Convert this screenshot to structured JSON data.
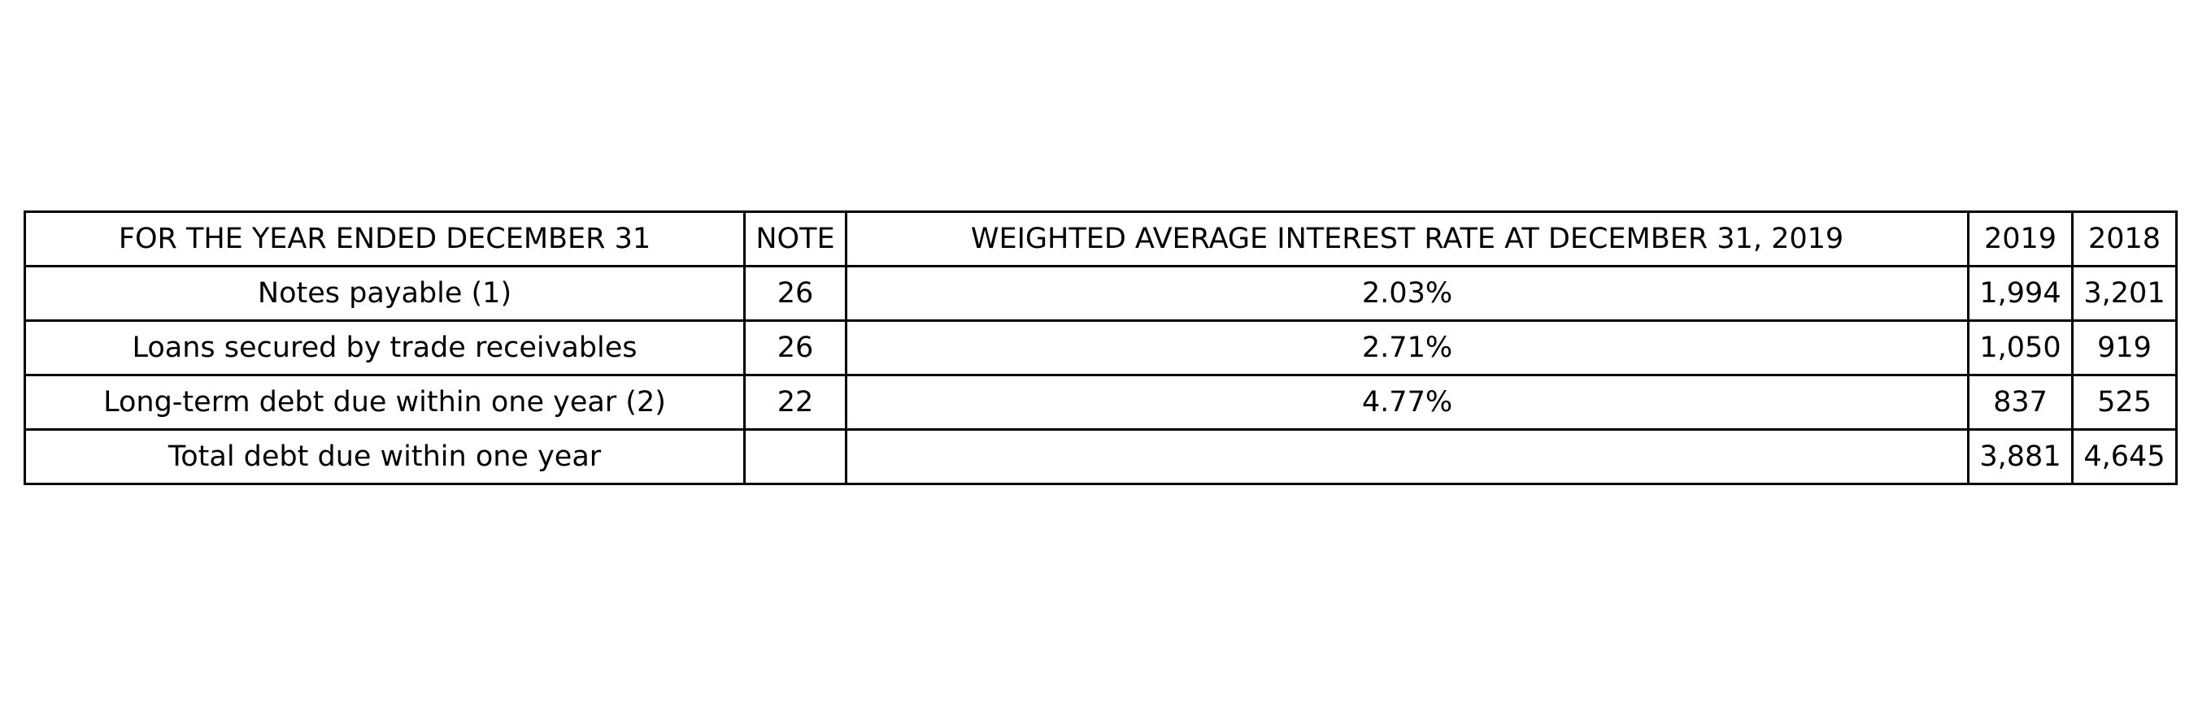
{
  "table": {
    "headers": [
      "FOR THE YEAR ENDED DECEMBER 31",
      "NOTE",
      "WEIGHTED AVERAGE INTEREST RATE AT DECEMBER 31, 2019",
      "2019",
      "2018"
    ],
    "rows": [
      [
        "Notes payable (1)",
        "26",
        "2.03%",
        "1,994",
        "3,201"
      ],
      [
        "Loans secured by trade receivables",
        "26",
        "2.71%",
        "1,050",
        "919"
      ],
      [
        "Long-term debt due within one year (2)",
        "22",
        "4.77%",
        "837",
        "525"
      ],
      [
        "Total debt due within one year",
        "",
        "",
        "3,881",
        "4,645"
      ]
    ]
  }
}
